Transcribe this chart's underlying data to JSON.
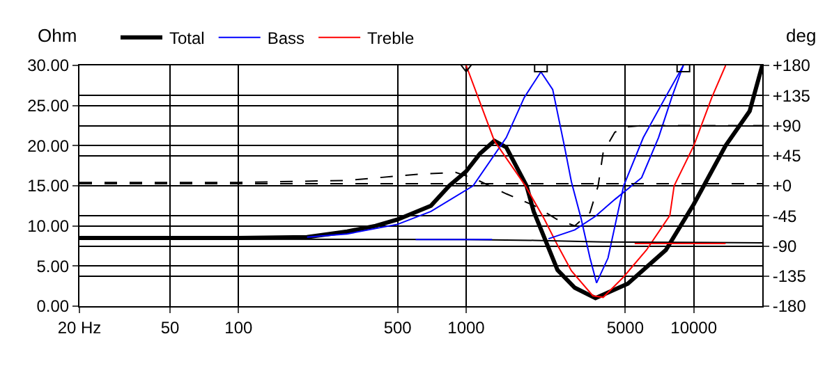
{
  "chart_data": {
    "type": "line",
    "ylabel": "Ohm",
    "y2label": "deg",
    "log": "x",
    "grid": true,
    "legend": "top left",
    "xlim": [
      20,
      20000
    ],
    "xticks": [
      {
        "value": 20,
        "label": "20 Hz"
      },
      50,
      100,
      500,
      1000,
      5000,
      10000
    ],
    "ylim": [
      0,
      30
    ],
    "yticks": [
      {
        "value": 0,
        "label": "0.00"
      },
      {
        "value": 5,
        "label": "5.00"
      },
      {
        "value": 10,
        "label": "10.00"
      },
      {
        "value": 15,
        "label": "15.00"
      },
      {
        "value": 20,
        "label": "20.00"
      },
      {
        "value": 25,
        "label": "25.00"
      },
      {
        "value": 30,
        "label": "30.00"
      }
    ],
    "y2lim": [
      -180,
      180
    ],
    "y2ticks": [
      {
        "value": 180,
        "label": "+180"
      },
      {
        "value": 135,
        "label": "+135"
      },
      {
        "value": 90,
        "label": "+90"
      },
      {
        "value": 45,
        "label": "+45"
      },
      {
        "value": 0,
        "label": "+0"
      },
      -45,
      -90,
      -135,
      -180
    ],
    "series": [
      {
        "name": "Total",
        "color": "#000000",
        "x": [
          20,
          100,
          200,
          300,
          400,
          500,
          700,
          843,
          1000,
          1150,
          1330,
          1500,
          1842,
          1980,
          2520,
          3000,
          3700,
          5130,
          7540,
          10000,
          13800,
          17600,
          20000
        ],
        "values": [
          8.5,
          8.5,
          8.6,
          9.3,
          10.0,
          10.8,
          12.5,
          15,
          16.8,
          19,
          20.6,
          19.8,
          15,
          11.8,
          4.5,
          2.3,
          1.0,
          2.8,
          7.0,
          12.7,
          20,
          24.3,
          30
        ]
      },
      {
        "name": "Bass",
        "color": "#0000ff",
        "x": [
          200,
          300,
          500,
          700,
          1073,
          1500,
          1800,
          2130,
          2400,
          2700,
          2900,
          3200,
          3500,
          3740,
          4200,
          4920,
          6000,
          7500,
          9000
        ],
        "values": [
          8.6,
          9.0,
          10.2,
          11.8,
          15,
          21,
          26,
          29.2,
          27,
          20,
          15.5,
          10.9,
          6,
          2.9,
          6,
          15,
          21,
          26,
          30
        ]
      },
      {
        "name": "Treble",
        "color": "#ff0000",
        "x": [
          1000,
          1330,
          1820,
          2200,
          2520,
          2900,
          3600,
          4000,
          4900,
          6200,
          7850,
          8200,
          10000,
          12000,
          13800
        ],
        "values": [
          30,
          20.6,
          15,
          10.9,
          7.6,
          4.4,
          1.3,
          1.1,
          3.6,
          7.0,
          11.3,
          15,
          20,
          26,
          30
        ]
      },
      {
        "color": "#000000",
        "x": [
          20,
          1000,
          2000,
          4000,
          20000
        ],
        "values": [
          8.4,
          8.3,
          8.2,
          8.0,
          7.9
        ]
      },
      {
        "color": "#0000ff",
        "x": [
          2300,
          3000,
          3700,
          4500,
          5900,
          7000,
          8000,
          9000
        ],
        "values": [
          8.4,
          9.5,
          11.2,
          13.3,
          16,
          21,
          26,
          30
        ]
      },
      {
        "color": "#0000ff",
        "x": [
          600,
          1300
        ],
        "values": [
          8.3,
          8.3
        ]
      },
      {
        "color": "#ff0000",
        "x": [
          5500,
          13800
        ],
        "values": [
          7.8,
          7.8
        ]
      },
      {
        "type": "scatter",
        "marker": "square",
        "color": "#000000",
        "x": [
          2130,
          9000
        ],
        "values": [
          30,
          30
        ]
      },
      {
        "type": "scatter",
        "marker": "triangle",
        "color": "#000000",
        "x": [
          1000
        ],
        "values": [
          30
        ]
      },
      {
        "axis": "y2",
        "line_style": "dashed",
        "color": "#000000",
        "x": [
          20,
          20000
        ],
        "values": [
          3,
          3
        ]
      },
      {
        "axis": "y2",
        "line_style": "dashed",
        "color": "#000000",
        "x": [
          20,
          100,
          300,
          600,
          900,
          1100,
          1500,
          2000,
          2500,
          3000,
          3500,
          3800,
          4000,
          4500,
          5000,
          6000,
          20000
        ],
        "values": [
          5,
          5,
          8,
          17,
          20,
          10,
          -12,
          -30,
          -50,
          -60,
          -40,
          0,
          50,
          80,
          88,
          90,
          90
        ]
      }
    ]
  }
}
